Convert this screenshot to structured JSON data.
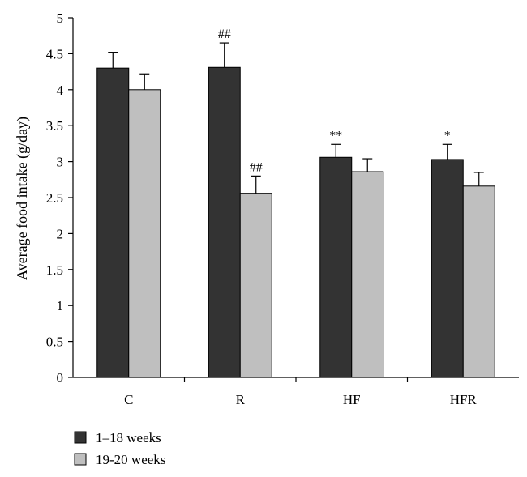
{
  "chart_data": {
    "type": "bar",
    "categories": [
      "C",
      "R",
      "HF",
      "HFR"
    ],
    "ylabel": "Average food intake (g/day)",
    "xlabel": "",
    "ylim": [
      0,
      5
    ],
    "yticks": [
      "0",
      "0.5",
      "1",
      "1.5",
      "2",
      "2.5",
      "3",
      "3.5",
      "4",
      "4.5",
      "5"
    ],
    "grid": false,
    "legend_position": "bottom-left",
    "series": [
      {
        "name": "1–18 weeks",
        "color": "#333333",
        "values": [
          4.3,
          4.31,
          3.06,
          3.03
        ],
        "errors": [
          0.22,
          0.34,
          0.18,
          0.21
        ],
        "annotations": [
          "",
          "##",
          "**",
          "*"
        ]
      },
      {
        "name": "19-20 weeks",
        "color": "#bfbfbf",
        "values": [
          4.0,
          2.56,
          2.86,
          2.66
        ],
        "errors": [
          0.22,
          0.24,
          0.18,
          0.19
        ],
        "annotations": [
          "",
          "##",
          "",
          ""
        ]
      }
    ]
  }
}
